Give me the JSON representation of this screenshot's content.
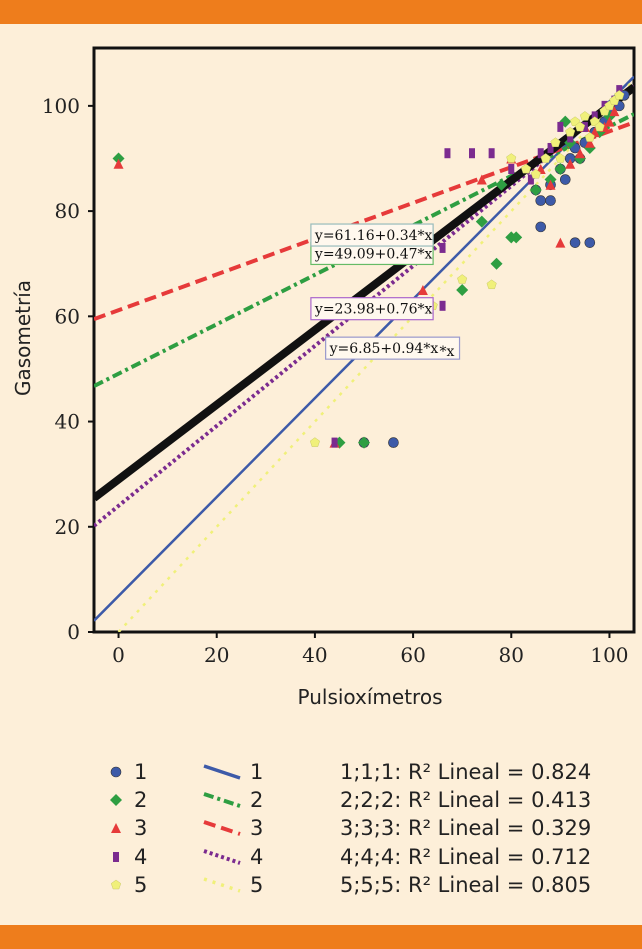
{
  "chart_data": {
    "type": "scatter",
    "xlabel": "Pulsioxímetros",
    "ylabel": "Gasometría",
    "xlim": [
      -5,
      105
    ],
    "ylim": [
      0,
      111
    ],
    "xticks": [
      0,
      20,
      40,
      60,
      80,
      100
    ],
    "yticks": [
      0,
      20,
      40,
      60,
      80,
      100
    ],
    "grid": false,
    "series": [
      {
        "name": "1",
        "color": "#3d5aa8",
        "marker": "circle",
        "fit": {
          "intercept": 6.85,
          "slope": 0.94,
          "label": "y=6.85+0.94*x",
          "suffix": "*x",
          "r2_text": "1;1;1: R² Lineal = 0.824",
          "style": "solid"
        },
        "points": [
          [
            56,
            36
          ],
          [
            50,
            36
          ],
          [
            85,
            84
          ],
          [
            86,
            82
          ],
          [
            88,
            85
          ],
          [
            90,
            88
          ],
          [
            92,
            90
          ],
          [
            93,
            92
          ],
          [
            95,
            93
          ],
          [
            96,
            74
          ],
          [
            93,
            74
          ],
          [
            86,
            77
          ],
          [
            88,
            82
          ],
          [
            91,
            86
          ],
          [
            94,
            90
          ],
          [
            97,
            95
          ],
          [
            99,
            97
          ],
          [
            100,
            99
          ],
          [
            102,
            100
          ],
          [
            103,
            102
          ]
        ]
      },
      {
        "name": "2",
        "color": "#2e9e42",
        "marker": "diamond",
        "fit": {
          "intercept": 49.09,
          "slope": 0.47,
          "label": "y=49.09+0.47*x",
          "suffix": "",
          "r2_text": "2;2;2: R² Lineal = 0.413",
          "style": "dashdot"
        },
        "points": [
          [
            0,
            90
          ],
          [
            45,
            36
          ],
          [
            50,
            36
          ],
          [
            77,
            70
          ],
          [
            80,
            75
          ],
          [
            81,
            75
          ],
          [
            85,
            84
          ],
          [
            88,
            86
          ],
          [
            90,
            88
          ],
          [
            91,
            97
          ],
          [
            92,
            93
          ],
          [
            94,
            90
          ],
          [
            96,
            92
          ],
          [
            98,
            95
          ],
          [
            100,
            98
          ],
          [
            70,
            65
          ],
          [
            74,
            78
          ],
          [
            78,
            85
          ]
        ]
      },
      {
        "name": "3",
        "color": "#e63a3a",
        "marker": "triangle",
        "fit": {
          "intercept": 61.16,
          "slope": 0.34,
          "label": "y=61.16+0.34*x",
          "suffix": "",
          "r2_text": "3;3;3: R² Lineal = 0.329",
          "style": "dashed"
        },
        "points": [
          [
            0,
            89
          ],
          [
            44,
            36
          ],
          [
            74,
            86
          ],
          [
            80,
            90
          ],
          [
            86,
            88
          ],
          [
            88,
            85
          ],
          [
            90,
            74
          ],
          [
            92,
            89
          ],
          [
            94,
            91
          ],
          [
            95,
            96
          ],
          [
            96,
            93
          ],
          [
            97,
            95
          ],
          [
            99,
            96
          ],
          [
            100,
            97
          ],
          [
            101,
            99
          ],
          [
            62,
            65
          ]
        ]
      },
      {
        "name": "4",
        "color": "#7b2b8f",
        "marker": "square",
        "fit": {
          "intercept": 23.98,
          "slope": 0.76,
          "label": "y=23.98+0.76*x",
          "suffix": "",
          "r2_text": "4;4;4: R² Lineal = 0.712",
          "style": "dotted"
        },
        "points": [
          [
            44,
            36
          ],
          [
            66,
            62
          ],
          [
            66,
            73
          ],
          [
            67,
            91
          ],
          [
            72,
            91
          ],
          [
            76,
            91
          ],
          [
            80,
            88
          ],
          [
            84,
            86
          ],
          [
            86,
            91
          ],
          [
            88,
            92
          ],
          [
            90,
            96
          ],
          [
            92,
            94
          ],
          [
            95,
            96
          ],
          [
            97,
            98
          ],
          [
            99,
            100
          ],
          [
            101,
            101
          ],
          [
            102,
            103
          ]
        ]
      },
      {
        "name": "5",
        "color": "#f0f07a",
        "marker": "pentagon",
        "fit": {
          "intercept": 0.0,
          "slope": 1.0,
          "label": "",
          "suffix": "",
          "r2_text": "5;5;5: R² Lineal = 0.805",
          "style": "sparse-dotted"
        },
        "points": [
          [
            40,
            36
          ],
          [
            64,
            62
          ],
          [
            70,
            67
          ],
          [
            76,
            66
          ],
          [
            80,
            90
          ],
          [
            83,
            88
          ],
          [
            85,
            87
          ],
          [
            87,
            90
          ],
          [
            89,
            93
          ],
          [
            90,
            90
          ],
          [
            92,
            95
          ],
          [
            93,
            97
          ],
          [
            94,
            96
          ],
          [
            95,
            98
          ],
          [
            96,
            94
          ],
          [
            97,
            97
          ],
          [
            98,
            96
          ],
          [
            99,
            99
          ],
          [
            100,
            100
          ],
          [
            101,
            101
          ],
          [
            102,
            102
          ]
        ]
      }
    ],
    "overall_fit": {
      "intercept": 29.0,
      "slope": 0.71,
      "color": "#111111"
    }
  },
  "legend": {
    "markers": [
      {
        "label": "1",
        "color": "#3d5aa8",
        "shape": "circle"
      },
      {
        "label": "2",
        "color": "#2e9e42",
        "shape": "diamond"
      },
      {
        "label": "3",
        "color": "#e63a3a",
        "shape": "triangle"
      },
      {
        "label": "4",
        "color": "#7b2b8f",
        "shape": "square"
      },
      {
        "label": "5",
        "color": "#f0f07a",
        "shape": "pentagon"
      }
    ],
    "lines": [
      {
        "label": "1",
        "color": "#3d5aa8",
        "style": "solid"
      },
      {
        "label": "2",
        "color": "#2e9e42",
        "style": "dashdot"
      },
      {
        "label": "3",
        "color": "#e63a3a",
        "style": "dashed"
      },
      {
        "label": "4",
        "color": "#7b2b8f",
        "style": "dotted"
      },
      {
        "label": "5",
        "color": "#f0f07a",
        "style": "sparse-dotted"
      }
    ],
    "r2": [
      "1;1;1: R² Lineal = 0.824",
      "2;2;2: R² Lineal = 0.413",
      "3;3;3: R² Lineal = 0.329",
      "4;4;4: R² Lineal = 0.712",
      "5;5;5: R² Lineal = 0.805"
    ]
  },
  "colors": {
    "band": "#ee7d1c",
    "background": "#fdefd9",
    "plot_bg": "#fdefd9"
  }
}
